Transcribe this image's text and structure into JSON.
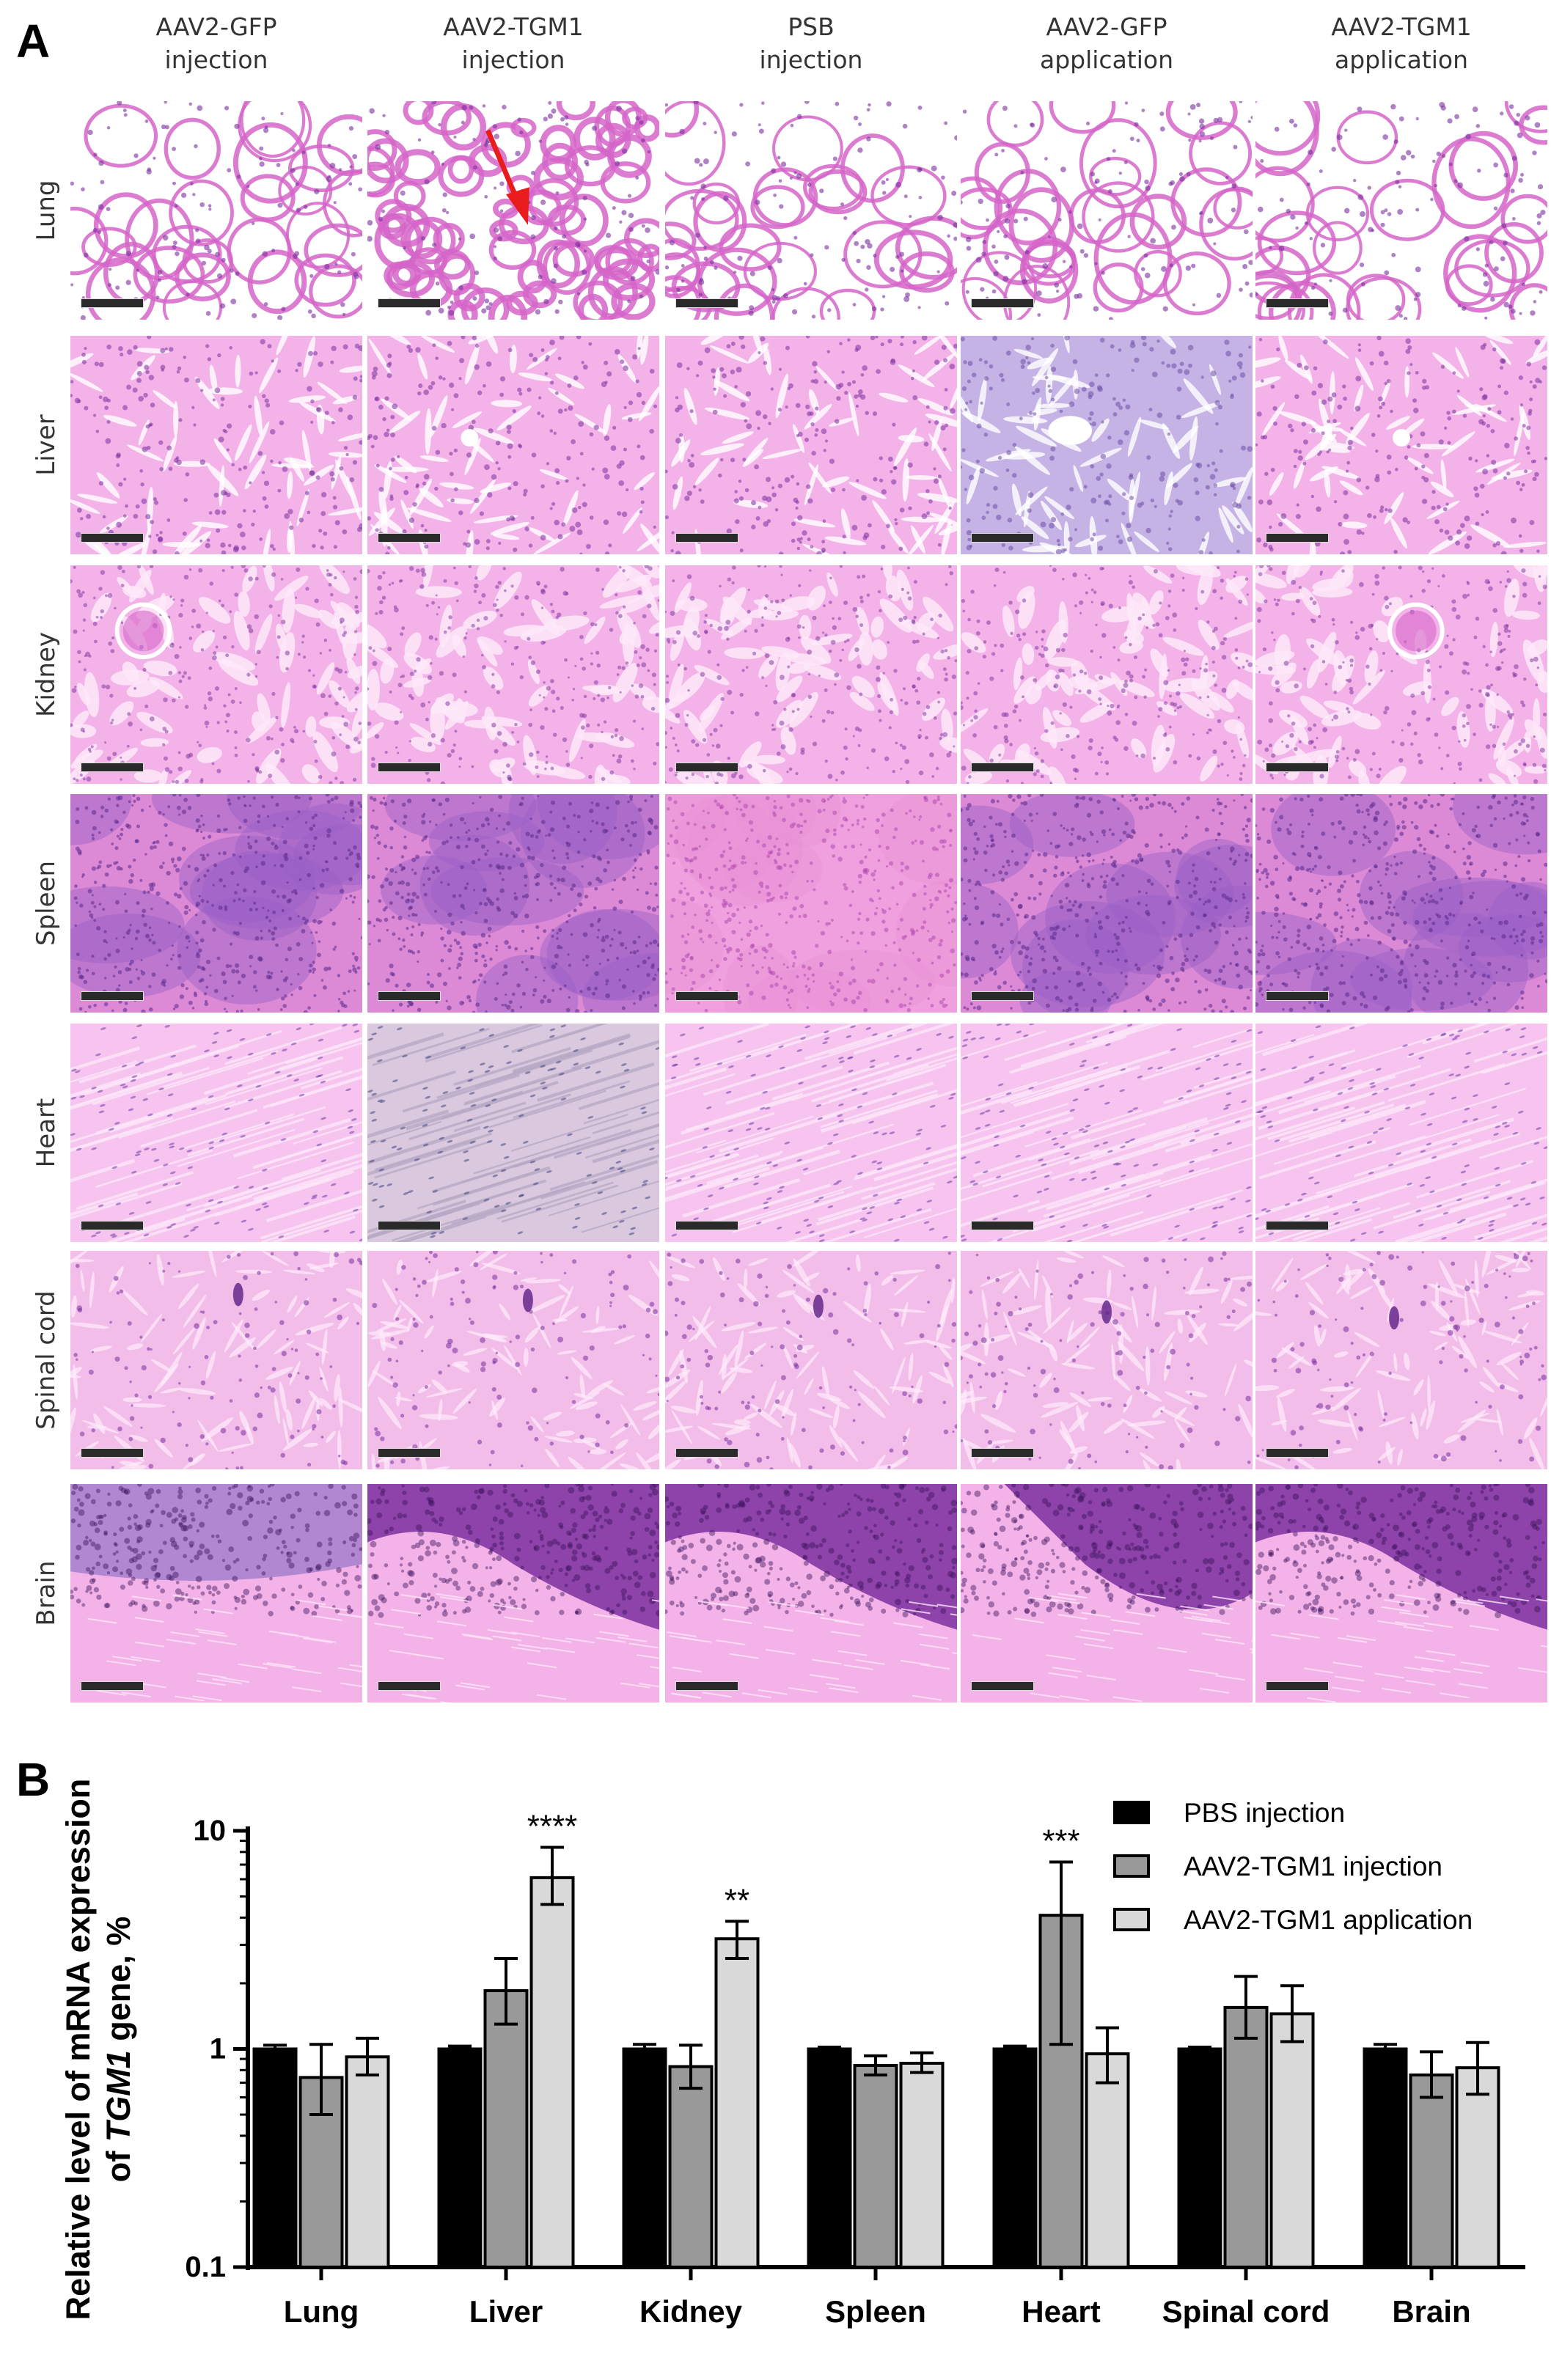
{
  "panel_a": {
    "label": "A",
    "columns": [
      {
        "line1": "AAV2-GFP",
        "line2": "injection"
      },
      {
        "line1": "AAV2-TGM1",
        "line2": "injection"
      },
      {
        "line1": "PSB",
        "line2": "injection"
      },
      {
        "line1": "AAV2-GFP",
        "line2": "application"
      },
      {
        "line1": "AAV2-TGM1",
        "line2": "application"
      }
    ],
    "rows": [
      {
        "label": "Lung",
        "style": "alveolar"
      },
      {
        "label": "Liver",
        "style": "hepatic"
      },
      {
        "label": "Kidney",
        "style": "renal"
      },
      {
        "label": "Spleen",
        "style": "splenic"
      },
      {
        "label": "Heart",
        "style": "fibrous"
      },
      {
        "label": "Spinal cord",
        "style": "neural"
      },
      {
        "label": "Brain",
        "style": "cerebellar"
      }
    ],
    "stain_colors": {
      "pink": "#f4b3e8",
      "magenta": "#d565c9",
      "purple": "#7a2f9e",
      "lavender": "#b49ad8"
    },
    "annotation": {
      "row": "Lung",
      "column": "AAV2-TGM1 injection",
      "type": "red-arrow",
      "color": "#e81c1c"
    }
  },
  "panel_b": {
    "label": "B"
  },
  "chart_data": {
    "type": "bar",
    "title": "",
    "ylabel": "Relative level of mRNA expression of TGM1 gene, %",
    "ylabel_line1": "Relative level of mRNA expression",
    "ylabel_line2a": "of ",
    "ylabel_line2b": "TGM1",
    "ylabel_line2c": " gene, %",
    "xlabel": "",
    "yscale": "log",
    "ylim": [
      0.1,
      10
    ],
    "yticks": [
      "0.1",
      "1",
      "10"
    ],
    "legend_position": "top-right",
    "categories": [
      "Lung",
      "Liver",
      "Kidney",
      "Spleen",
      "Heart",
      "Spinal cord",
      "Brain"
    ],
    "series": [
      {
        "name": "PBS injection",
        "color": "#000000",
        "values": [
          1.0,
          1.0,
          1.0,
          1.0,
          1.0,
          1.0,
          1.0
        ],
        "err_low": [
          0.96,
          0.97,
          0.95,
          0.98,
          0.97,
          0.98,
          0.95
        ],
        "err_high": [
          1.04,
          1.03,
          1.05,
          1.02,
          1.03,
          1.02,
          1.05
        ]
      },
      {
        "name": "AAV2-TGM1 injection",
        "color": "#999999",
        "values": [
          0.74,
          1.85,
          0.83,
          0.84,
          4.1,
          1.55,
          0.76
        ],
        "err_low": [
          0.5,
          1.3,
          0.66,
          0.76,
          1.05,
          1.12,
          0.6
        ],
        "err_high": [
          1.05,
          2.6,
          1.04,
          0.93,
          7.2,
          2.15,
          0.97
        ]
      },
      {
        "name": "AAV2-TGM1 application",
        "color": "#d9d9d9",
        "values": [
          0.92,
          6.1,
          3.2,
          0.86,
          0.95,
          1.45,
          0.82
        ],
        "err_low": [
          0.76,
          4.6,
          2.6,
          0.78,
          0.7,
          1.08,
          0.62
        ],
        "err_high": [
          1.12,
          8.4,
          3.85,
          0.96,
          1.25,
          1.95,
          1.07
        ]
      }
    ],
    "annotations": [
      {
        "category": "Liver",
        "series": "AAV2-TGM1 application",
        "text": "****"
      },
      {
        "category": "Kidney",
        "series": "AAV2-TGM1 application",
        "text": "**"
      },
      {
        "category": "Heart",
        "series": "AAV2-TGM1 injection",
        "text": "***"
      }
    ]
  }
}
